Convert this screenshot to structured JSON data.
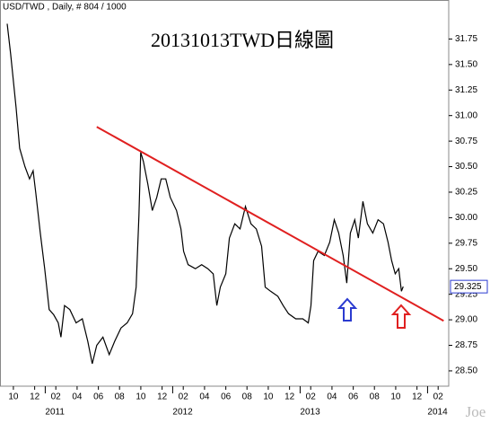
{
  "chart_data": {
    "type": "line",
    "header": "USD/TWD , Daily, # 804 / 1000",
    "title": "20131013TWD日線圖",
    "watermark": "Joe",
    "color": "#000000",
    "x": [
      2010.701,
      2010.729,
      2010.771,
      2010.799,
      2010.841,
      2010.877,
      2010.905,
      2010.926,
      2010.961,
      2010.996,
      2011.031,
      2011.066,
      2011.102,
      2011.123,
      2011.151,
      2011.193,
      2011.242,
      2011.291,
      2011.334,
      2011.369,
      2011.404,
      2011.453,
      2011.502,
      2011.545,
      2011.594,
      2011.643,
      2011.685,
      2011.713,
      2011.735,
      2011.749,
      2011.77,
      2011.805,
      2011.84,
      2011.875,
      2011.91,
      2011.946,
      2011.981,
      2012.03,
      2012.065,
      2012.086,
      2012.121,
      2012.178,
      2012.227,
      2012.276,
      2012.318,
      2012.346,
      2012.374,
      2012.417,
      2012.445,
      2012.487,
      2012.529,
      2012.571,
      2012.614,
      2012.656,
      2012.698,
      2012.726,
      2012.768,
      2012.825,
      2012.867,
      2012.909,
      2012.965,
      2013.021,
      2013.064,
      2013.085,
      2013.106,
      2013.141,
      2013.19,
      2013.232,
      2013.268,
      2013.303,
      2013.338,
      2013.366,
      2013.394,
      2013.429,
      2013.457,
      2013.493,
      2013.528,
      2013.57,
      2013.612,
      2013.654,
      2013.69,
      2013.718,
      2013.746,
      2013.774,
      2013.795,
      2013.809
    ],
    "values": [
      31.9,
      31.6,
      31.08,
      30.68,
      30.5,
      30.38,
      30.46,
      30.24,
      29.85,
      29.5,
      29.1,
      29.05,
      28.97,
      28.83,
      29.14,
      29.1,
      28.97,
      29.01,
      28.79,
      28.57,
      28.75,
      28.83,
      28.66,
      28.79,
      28.92,
      28.97,
      29.06,
      29.32,
      30.02,
      30.64,
      30.55,
      30.33,
      30.07,
      30.2,
      30.38,
      30.38,
      30.2,
      30.07,
      29.89,
      29.67,
      29.54,
      29.5,
      29.54,
      29.5,
      29.45,
      29.14,
      29.32,
      29.45,
      29.8,
      29.94,
      29.89,
      30.11,
      29.94,
      29.89,
      29.72,
      29.32,
      29.28,
      29.23,
      29.14,
      29.06,
      29.01,
      29.01,
      28.97,
      29.14,
      29.58,
      29.67,
      29.63,
      29.76,
      29.98,
      29.85,
      29.63,
      29.36,
      29.85,
      29.98,
      29.8,
      30.16,
      29.94,
      29.85,
      29.98,
      29.94,
      29.76,
      29.58,
      29.45,
      29.5,
      29.28,
      29.325
    ],
    "last_value": 29.325,
    "trendline": {
      "x": [
        2011.404,
        2014.126
      ],
      "values": [
        30.89,
        28.99
      ],
      "color": "#e02020"
    },
    "xlim": [
      2010.645,
      2014.166
    ],
    "ylim": [
      28.35,
      32.0
    ],
    "xticks": [
      {
        "value": 2010.75,
        "label": "10"
      },
      {
        "value": 2010.917,
        "label": "12"
      },
      {
        "value": 2011.083,
        "label": "02"
      },
      {
        "value": 2011.25,
        "label": "04"
      },
      {
        "value": 2011.417,
        "label": "06"
      },
      {
        "value": 2011.583,
        "label": "08"
      },
      {
        "value": 2011.75,
        "label": "10"
      },
      {
        "value": 2011.917,
        "label": "12"
      },
      {
        "value": 2012.083,
        "label": "02"
      },
      {
        "value": 2012.25,
        "label": "04"
      },
      {
        "value": 2012.417,
        "label": "06"
      },
      {
        "value": 2012.583,
        "label": "08"
      },
      {
        "value": 2012.75,
        "label": "10"
      },
      {
        "value": 2012.917,
        "label": "12"
      },
      {
        "value": 2013.083,
        "label": "02"
      },
      {
        "value": 2013.25,
        "label": "04"
      },
      {
        "value": 2013.417,
        "label": "06"
      },
      {
        "value": 2013.583,
        "label": "08"
      },
      {
        "value": 2013.75,
        "label": "10"
      },
      {
        "value": 2013.917,
        "label": "12"
      },
      {
        "value": 2014.083,
        "label": "02"
      }
    ],
    "year_ticks": [
      2011,
      2012,
      2013,
      2014
    ],
    "yticks": [
      {
        "value": 28.5,
        "label": "28.50"
      },
      28.75,
      {
        "value": 29,
        "label": "29.00"
      },
      29.25,
      {
        "value": 29.5,
        "label": "29.50"
      },
      29.75,
      {
        "value": 30,
        "label": "30.00"
      },
      30.25,
      {
        "value": 30.5,
        "label": "30.50"
      },
      30.75,
      {
        "value": 31,
        "label": "31.00"
      },
      31.25,
      {
        "value": 31.5,
        "label": "31.50"
      },
      31.75
    ],
    "grid": false
  }
}
